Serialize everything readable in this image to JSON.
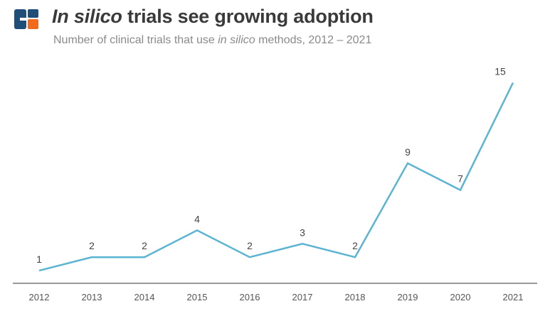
{
  "header": {
    "title_italic": "In silico",
    "title_rest": " trials see growing adoption",
    "subtitle_before": "Number of clinical trials that use ",
    "subtitle_italic": "in silico",
    "subtitle_after": " methods, 2012 – 2021",
    "logo_name": "brand-logo",
    "logo_colors": {
      "blue": "#1f4e79",
      "orange": "#f26a1b"
    }
  },
  "chart_data": {
    "type": "line",
    "title": "In silico trials see growing adoption",
    "subtitle": "Number of clinical trials that use in silico methods, 2012 – 2021",
    "xlabel": "",
    "ylabel": "",
    "categories": [
      "2012",
      "2013",
      "2014",
      "2015",
      "2016",
      "2017",
      "2018",
      "2019",
      "2020",
      "2021"
    ],
    "series": [
      {
        "values": [
          1,
          2,
          2,
          4,
          2,
          3,
          2,
          9,
          7,
          15
        ],
        "color": "#5ab4d2"
      }
    ],
    "ylim": [
      0,
      15
    ],
    "grid": false,
    "legend": "none",
    "data_labels": true
  }
}
